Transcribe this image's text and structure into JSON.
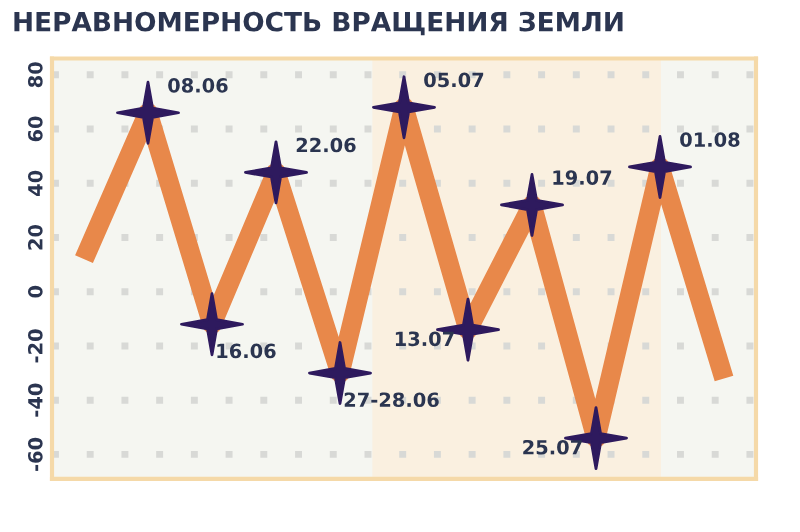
{
  "chart_data": {
    "type": "line",
    "title": "НЕРАВНОМЕРНОСТЬ ВРАЩЕНИЯ ЗЕМЛИ",
    "categories": [
      null,
      null,
      null,
      null,
      null,
      null,
      null,
      null,
      null,
      null,
      null
    ],
    "series": [
      {
        "color": "#e8884a",
        "values": [
          12,
          66,
          -12,
          44,
          -30,
          68,
          -14,
          32,
          -54,
          46,
          -32
        ]
      }
    ],
    "annotations": [
      "08.06",
      "16.06",
      "22.06",
      "27-28.06",
      "05.07",
      "13.07",
      "19.07",
      "25.07",
      "01.08"
    ],
    "marker": "star",
    "ylim": [
      -69,
      86
    ],
    "yticks": [
      -60,
      -40,
      -20,
      0,
      20,
      40,
      60,
      80
    ],
    "grid": "y",
    "tick_labels": "y"
  }
}
